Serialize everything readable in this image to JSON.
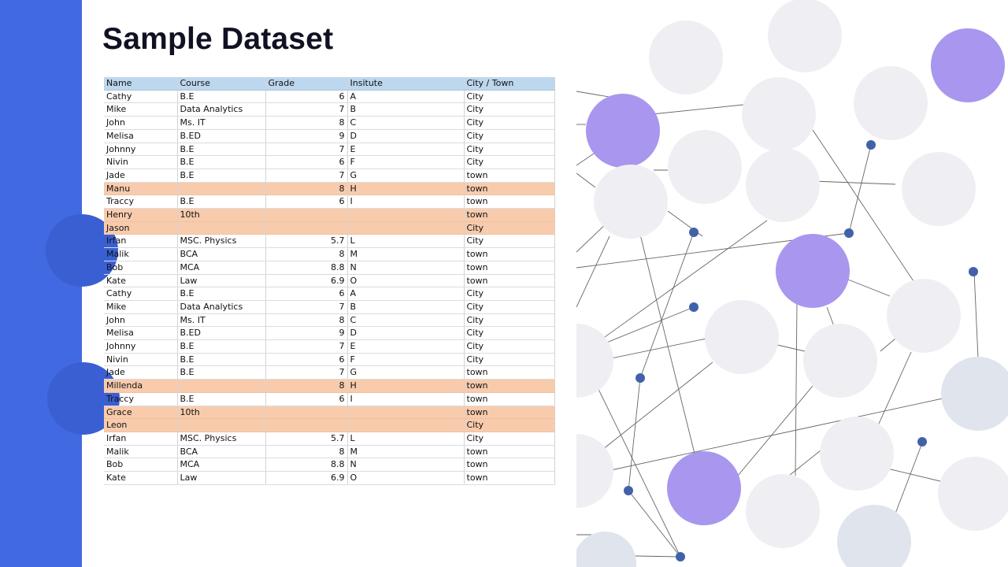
{
  "slide": {
    "title": "Sample Dataset",
    "accent_color": "#4169e1",
    "highlight_row_color": "#f8cbad",
    "header_color": "#bdd7ee"
  },
  "table": {
    "headers": [
      "Name",
      "Course",
      "Grade",
      "Insitute",
      "City / Town"
    ],
    "rows": [
      {
        "cells": [
          "Cathy",
          "B.E",
          "6",
          "A",
          "City"
        ],
        "highlight": false
      },
      {
        "cells": [
          "Mike",
          "Data Analytics",
          "7",
          "B",
          "City"
        ],
        "highlight": false
      },
      {
        "cells": [
          "John",
          "Ms. IT",
          "8",
          "C",
          "City"
        ],
        "highlight": false
      },
      {
        "cells": [
          "Melisa",
          "B.ED",
          "9",
          "D",
          "City"
        ],
        "highlight": false
      },
      {
        "cells": [
          "Johnny",
          "B.E",
          "7",
          "E",
          "City"
        ],
        "highlight": false
      },
      {
        "cells": [
          "Nivin",
          "B.E",
          "6",
          "F",
          "City"
        ],
        "highlight": false
      },
      {
        "cells": [
          "Jade",
          "B.E",
          "7",
          "G",
          "town"
        ],
        "highlight": false
      },
      {
        "cells": [
          "Manu",
          "",
          "8",
          "H",
          "town"
        ],
        "highlight": true
      },
      {
        "cells": [
          "Traccy",
          "B.E",
          "6",
          "I",
          "town"
        ],
        "highlight": false
      },
      {
        "cells": [
          "Henry",
          "10th",
          "",
          "",
          "town"
        ],
        "highlight": true
      },
      {
        "cells": [
          "Jason",
          "",
          "",
          "",
          "City"
        ],
        "highlight": true
      },
      {
        "cells": [
          "Irfan",
          "MSC. Physics",
          "5.7",
          "L",
          "City"
        ],
        "highlight": false
      },
      {
        "cells": [
          "Malik",
          "BCA",
          "8",
          "M",
          "town"
        ],
        "highlight": false
      },
      {
        "cells": [
          "Bob",
          "MCA",
          "8.8",
          "N",
          "town"
        ],
        "highlight": false
      },
      {
        "cells": [
          "Kate",
          "Law",
          "6.9",
          "O",
          "town"
        ],
        "highlight": false
      },
      {
        "cells": [
          "Cathy",
          "B.E",
          "6",
          "A",
          "City"
        ],
        "highlight": false
      },
      {
        "cells": [
          "Mike",
          "Data Analytics",
          "7",
          "B",
          "City"
        ],
        "highlight": false
      },
      {
        "cells": [
          "John",
          "Ms. IT",
          "8",
          "C",
          "City"
        ],
        "highlight": false
      },
      {
        "cells": [
          "Melisa",
          "B.ED",
          "9",
          "D",
          "City"
        ],
        "highlight": false
      },
      {
        "cells": [
          "Johnny",
          "B.E",
          "7",
          "E",
          "City"
        ],
        "highlight": false
      },
      {
        "cells": [
          "Nivin",
          "B.E",
          "6",
          "F",
          "City"
        ],
        "highlight": false
      },
      {
        "cells": [
          "Jade",
          "B.E",
          "7",
          "G",
          "town"
        ],
        "highlight": false
      },
      {
        "cells": [
          "Millenda",
          "",
          "8",
          "H",
          "town"
        ],
        "highlight": true
      },
      {
        "cells": [
          "Traccy",
          "B.E",
          "6",
          "I",
          "town"
        ],
        "highlight": false
      },
      {
        "cells": [
          "Grace",
          "10th",
          "",
          "",
          "town"
        ],
        "highlight": true
      },
      {
        "cells": [
          "Leon",
          "",
          "",
          "",
          "City"
        ],
        "highlight": true
      },
      {
        "cells": [
          "Irfan",
          "MSC. Physics",
          "5.7",
          "L",
          "City"
        ],
        "highlight": false
      },
      {
        "cells": [
          "Malik",
          "BCA",
          "8",
          "M",
          "town"
        ],
        "highlight": false
      },
      {
        "cells": [
          "Bob",
          "MCA",
          "8.8",
          "N",
          "town"
        ],
        "highlight": false
      },
      {
        "cells": [
          "Kate",
          "Law",
          "6.9",
          "O",
          "town"
        ],
        "highlight": false
      }
    ]
  },
  "decoration": {
    "icon": "network-graph-illustration",
    "node_colors": {
      "purple": "#a996ee",
      "light": "#efeff3",
      "blue_gray": "#e0e4ec",
      "dot": "#4162a8"
    }
  }
}
